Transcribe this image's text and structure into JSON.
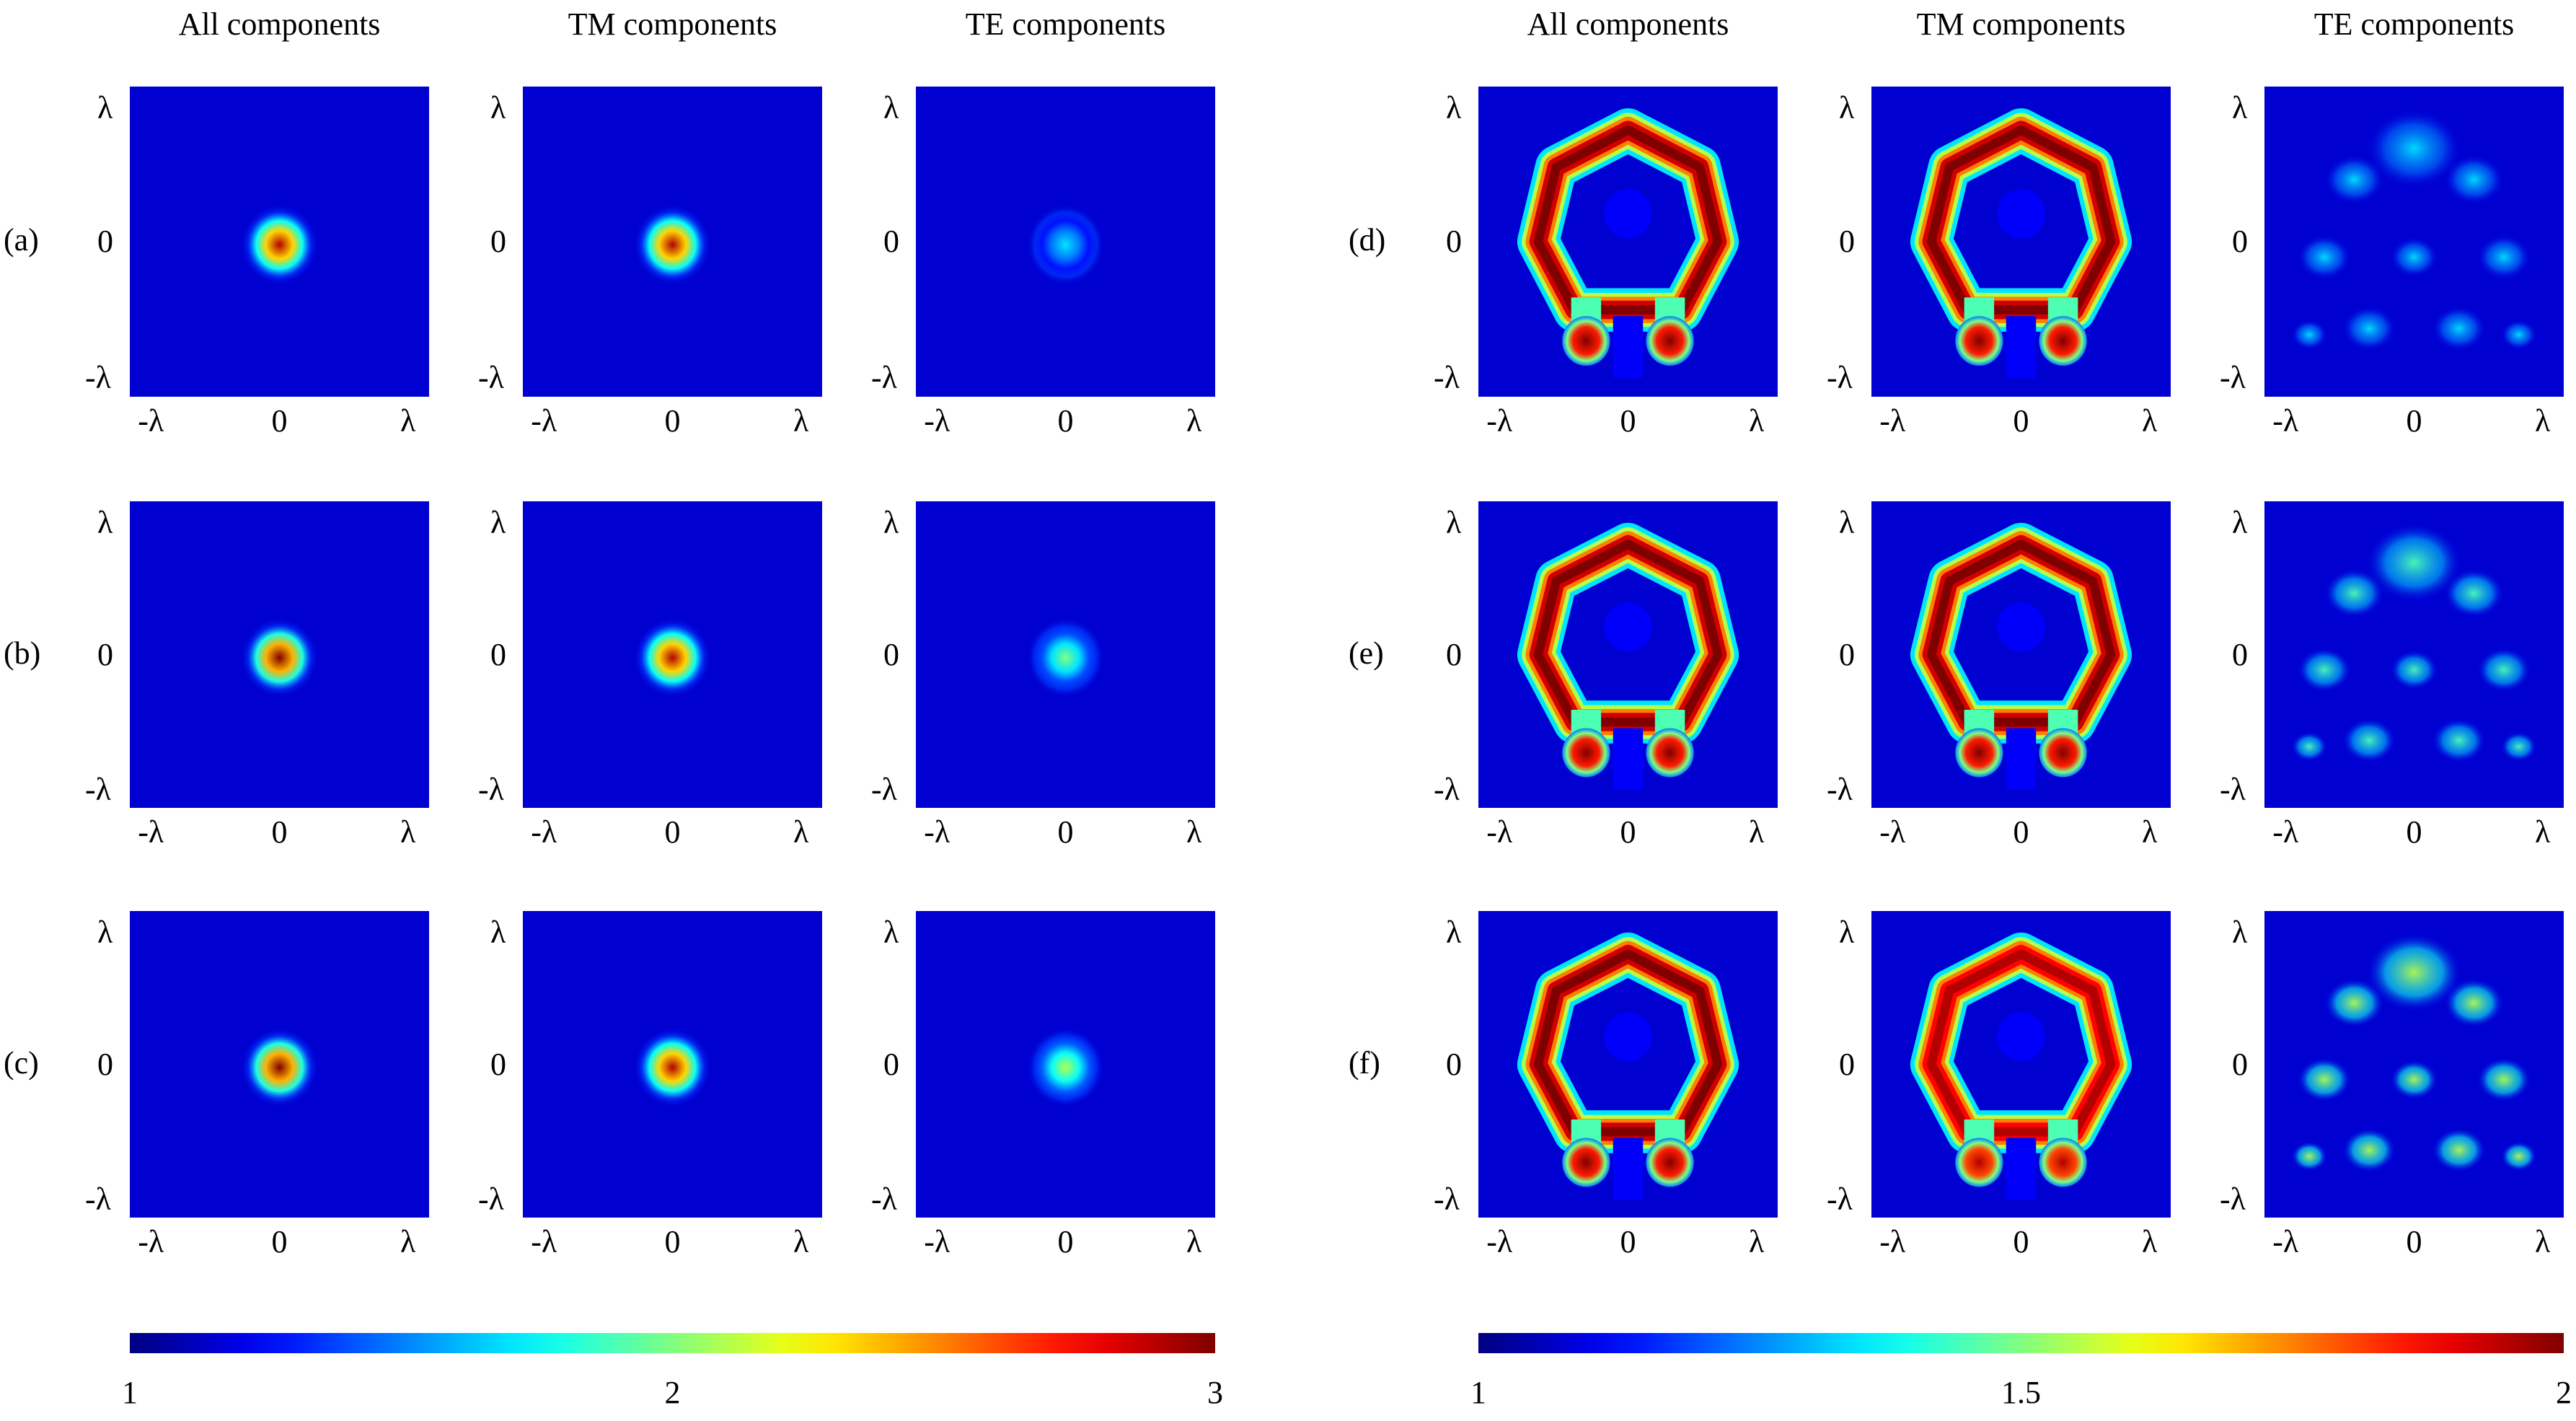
{
  "headers": {
    "left": [
      "All components",
      "TM components",
      "TE components"
    ],
    "right": [
      "All components",
      "TM components",
      "TE components"
    ]
  },
  "rows": {
    "left": [
      "(a)",
      "(b)",
      "(c)"
    ],
    "right": [
      "(d)",
      "(e)",
      "(f)"
    ]
  },
  "axis_ticks": {
    "y": [
      "λ",
      "0",
      "-λ"
    ],
    "x": [
      "-λ",
      "0",
      "λ"
    ]
  },
  "colorbar_left": {
    "labels": [
      "1",
      "2",
      "3"
    ],
    "range": [
      1,
      3
    ]
  },
  "colorbar_right": {
    "labels": [
      "1",
      "1.5",
      "2"
    ],
    "range": [
      1,
      2
    ]
  },
  "colormap": "jet",
  "colors": {
    "background_dark": "#00008f",
    "peak": "#800000"
  },
  "panels": {
    "left": [
      {
        "row": "(a)",
        "columns": [
          "All components",
          "TM components",
          "TE components"
        ],
        "pattern": "focal spot",
        "peak_levels": [
          0.95,
          0.95,
          0.35
        ]
      },
      {
        "row": "(b)",
        "columns": [
          "All components",
          "TM components",
          "TE components"
        ],
        "pattern": "focal spot",
        "peak_levels": [
          1.0,
          0.95,
          0.5
        ]
      },
      {
        "row": "(c)",
        "columns": [
          "All components",
          "TM components",
          "TE components"
        ],
        "pattern": "focal spot",
        "peak_levels": [
          1.0,
          0.95,
          0.55
        ]
      }
    ],
    "right": [
      {
        "row": "(d)",
        "columns": [
          "All components",
          "TM components",
          "TE components"
        ],
        "pattern": "ring with two feet",
        "peak_levels": [
          1.0,
          1.0,
          0.35
        ]
      },
      {
        "row": "(e)",
        "columns": [
          "All components",
          "TM components",
          "TE components"
        ],
        "pattern": "ring with two feet",
        "peak_levels": [
          1.0,
          1.0,
          0.45
        ]
      },
      {
        "row": "(f)",
        "columns": [
          "All components",
          "TM components",
          "TE components"
        ],
        "pattern": "ring with two feet",
        "peak_levels": [
          1.0,
          0.95,
          0.55
        ]
      }
    ]
  }
}
